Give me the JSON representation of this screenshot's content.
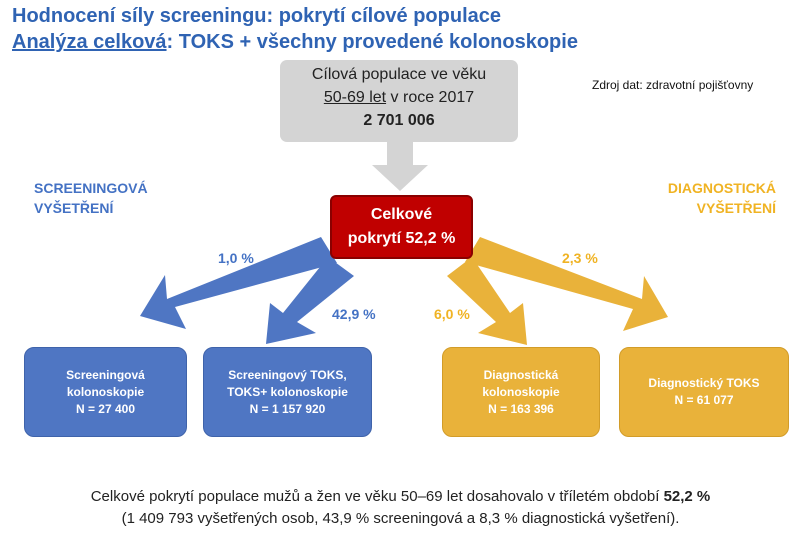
{
  "title_line1": "Hodnocení síly screeningu: pokrytí cílové populace",
  "title_line2_underlined": "Analýza celková",
  "title_line2_rest": ": TOKS + všechny provedené kolonoskopie",
  "source": "Zdroj dat: zdravotní pojišťovny",
  "top_box": {
    "line1": "Cílová populace ve věku",
    "line2_underlined": "50-69 let",
    "line2_rest": " v roce 2017",
    "value": "2 701 006"
  },
  "center_box": {
    "line1": "Celkové",
    "line2": "pokrytí 52,2 %"
  },
  "left_label": {
    "line1": "SCREENINGOVÁ",
    "line2": "VYŠETŘENÍ"
  },
  "right_label": {
    "line1": "DIAGNOSTICKÁ",
    "line2": "VYŠETŘENÍ"
  },
  "percentages": {
    "screening_colonoscopy": "1,0 %",
    "screening_toks": "42,9 %",
    "diagnostic_colonoscopy": "6,0 %",
    "diagnostic_toks": "2,3 %"
  },
  "boxes": {
    "screening_colonoscopy": {
      "line1": "Screeningová",
      "line2": "kolonoskopie",
      "line3": "N = 27 400"
    },
    "screening_toks": {
      "line1": "Screeningový TOKS,",
      "line2": "TOKS+ kolonoskopie",
      "line3": "N = 1 157 920"
    },
    "diagnostic_colonoscopy": {
      "line1": "Diagnostická",
      "line2": "kolonoskopie",
      "line3": "N = 163 396"
    },
    "diagnostic_toks": {
      "line1": "Diagnostický TOKS",
      "line2": "N = 61 077"
    }
  },
  "footer": {
    "line1_text": "Celkové pokrytí populace mužů a žen ve věku 50–69  let dosahovalo v tříletém období ",
    "line1_bold": "52,2 %",
    "line2": "(1 409 793 vyšetřených osob, 43,9 % screeningová a 8,3 % diagnostická vyšetření)."
  },
  "colors": {
    "title": "#2f63b3",
    "screening": "#4472c4",
    "diagnostic": "#f0b323",
    "center": "#c00000",
    "top_box": "#d4d4d4"
  }
}
